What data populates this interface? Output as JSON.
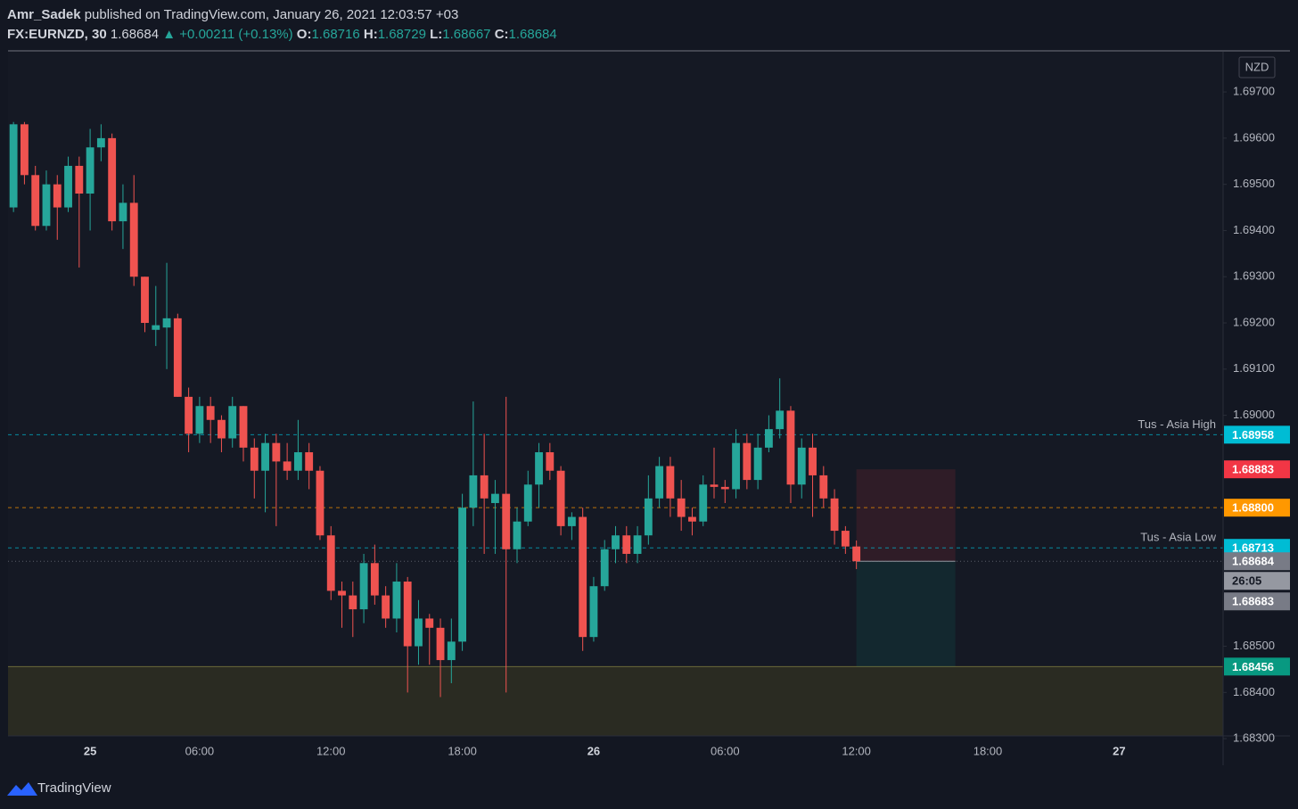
{
  "header": {
    "publisher": "Amr_Sadek",
    "published": "published on TradingView.com, January 26, 2021 12:03:57 +03",
    "symbol": "FX:EURNZD, 30",
    "last": "1.68684",
    "change": "+0.00211 (+0.13%)",
    "ohlc": [
      {
        "label": "O:",
        "value": "1.68716"
      },
      {
        "label": "H:",
        "value": "1.68729"
      },
      {
        "label": "L:",
        "value": "1.68667"
      },
      {
        "label": "C:",
        "value": "1.68684"
      }
    ]
  },
  "brand": "TradingView",
  "chart_data": {
    "type": "candlestick",
    "currency": "NZD",
    "up_color": "#26a69a",
    "down_color": "#ef5350",
    "categories": [
      null,
      null,
      null,
      null,
      null,
      null,
      null,
      "25",
      null,
      null,
      null,
      null,
      null,
      null,
      null,
      null,
      null,
      "06:00",
      null,
      null,
      null,
      null,
      null,
      null,
      null,
      null,
      null,
      null,
      null,
      "12:00",
      null,
      null,
      null,
      null,
      null,
      null,
      null,
      null,
      null,
      null,
      null,
      "18:00",
      null,
      null,
      null,
      null,
      null,
      null,
      null,
      null,
      null,
      null,
      null,
      "26",
      null,
      null,
      null,
      null,
      null,
      null,
      null,
      null,
      null,
      null,
      null,
      "06:00",
      null,
      null,
      null,
      null,
      null,
      null,
      null,
      null,
      null,
      null,
      null,
      "12:00",
      null,
      null,
      null,
      null,
      null,
      null,
      null,
      null,
      null,
      null,
      null,
      "18:00",
      null,
      null,
      null,
      null,
      null,
      null,
      null,
      null,
      null,
      null,
      null,
      "27",
      null,
      null,
      null,
      null,
      null,
      null,
      null,
      null,
      null
    ],
    "open": [
      1.6945,
      1.6963,
      1.6952,
      1.6941,
      1.695,
      1.6945,
      1.6954,
      1.6948,
      1.6958,
      1.696,
      1.6942,
      1.6946,
      1.693,
      1.69185,
      1.6919,
      1.6921,
      1.6904,
      1.6896,
      1.6902,
      1.6899,
      1.6895,
      1.6902,
      1.6893,
      1.6888,
      1.6894,
      1.689,
      1.6888,
      1.6892,
      1.6888,
      1.6874,
      1.6862,
      1.6861,
      1.6858,
      1.6868,
      1.6861,
      1.6856,
      1.6864,
      1.685,
      1.6856,
      1.6854,
      1.6847,
      1.6851,
      1.688,
      1.6887,
      1.6881,
      1.6883,
      1.6871,
      1.6877,
      1.6885,
      1.6892,
      1.6888,
      1.6876,
      1.6878,
      1.6852,
      1.6863,
      1.6871,
      1.6874,
      1.687,
      1.6874,
      1.6882,
      1.6889,
      1.6882,
      1.6878,
      1.6877,
      1.6885,
      1.68845,
      1.6884,
      1.6894,
      1.6886,
      1.6893,
      1.6897,
      1.6901,
      1.6885,
      1.6893,
      1.6887,
      1.6882,
      1.6875,
      1.68716,
      null,
      null,
      null,
      null,
      null,
      null,
      null,
      null,
      null,
      null,
      null,
      null,
      null,
      null,
      null,
      null,
      null,
      null,
      null,
      null,
      null,
      null,
      null,
      null,
      null,
      null,
      null,
      null,
      null,
      null,
      null,
      null,
      null
    ],
    "high": [
      1.69635,
      1.69635,
      1.6954,
      1.6953,
      1.6952,
      1.6956,
      1.6956,
      1.6962,
      1.6963,
      1.6961,
      1.695,
      1.6952,
      1.693,
      1.6928,
      1.6933,
      1.6922,
      1.6906,
      1.6904,
      1.6904,
      1.69,
      1.6904,
      1.6902,
      1.6895,
      1.6896,
      1.6896,
      1.6894,
      1.6899,
      1.6894,
      1.6889,
      1.6876,
      1.6864,
      1.6864,
      1.687,
      1.6872,
      1.6863,
      1.6868,
      1.6865,
      1.686,
      1.6857,
      1.6856,
      1.6856,
      1.6883,
      1.6903,
      1.6896,
      1.6886,
      1.6904,
      1.688,
      1.6888,
      1.6894,
      1.6894,
      1.6889,
      1.6879,
      1.688,
      1.6865,
      1.6873,
      1.6876,
      1.6876,
      1.6876,
      1.6887,
      1.6891,
      1.6891,
      1.6886,
      1.688,
      1.6887,
      1.6893,
      1.6886,
      1.6897,
      1.6896,
      1.6896,
      1.69,
      1.6908,
      1.6902,
      1.6895,
      1.6896,
      1.6889,
      1.6884,
      1.6876,
      1.68729,
      null,
      null,
      null,
      null,
      null,
      null,
      null,
      null,
      null,
      null,
      null,
      null,
      null,
      null,
      null,
      null,
      null,
      null,
      null,
      null,
      null,
      null,
      null,
      null,
      null,
      null,
      null,
      null,
      null,
      null,
      null,
      null,
      null
    ],
    "low": [
      1.6944,
      1.695,
      1.694,
      1.694,
      1.6938,
      1.6944,
      1.6932,
      1.694,
      1.6955,
      1.694,
      1.6936,
      1.6928,
      1.6918,
      1.6915,
      1.691,
      1.6904,
      1.6892,
      1.6894,
      1.6894,
      1.6892,
      1.6893,
      1.689,
      1.6882,
      1.6879,
      1.6876,
      1.6886,
      1.6886,
      1.6884,
      1.6873,
      1.686,
      1.6854,
      1.6852,
      1.6855,
      1.6859,
      1.6854,
      1.6853,
      1.684,
      1.6846,
      1.6846,
      1.6839,
      1.6842,
      1.6849,
      1.6876,
      1.687,
      1.687,
      1.684,
      1.6868,
      1.6876,
      1.688,
      1.6886,
      1.6874,
      1.6873,
      1.6849,
      1.6851,
      1.6862,
      1.6868,
      1.6868,
      1.6868,
      1.6872,
      1.688,
      1.6878,
      1.6875,
      1.6874,
      1.6876,
      1.6882,
      1.6881,
      1.6882,
      1.6884,
      1.6884,
      1.6892,
      1.6895,
      1.6881,
      1.6882,
      1.6878,
      1.688,
      1.6872,
      1.687,
      1.68667,
      null,
      null,
      null,
      null,
      null,
      null,
      null,
      null,
      null,
      null,
      null,
      null,
      null,
      null,
      null,
      null,
      null,
      null,
      null,
      null,
      null,
      null,
      null,
      null,
      null,
      null,
      null,
      null,
      null,
      null,
      null,
      null,
      null
    ],
    "close": [
      1.6963,
      1.6952,
      1.6941,
      1.695,
      1.6945,
      1.6954,
      1.6948,
      1.6958,
      1.696,
      1.6942,
      1.6946,
      1.693,
      1.692,
      1.69195,
      1.6921,
      1.6904,
      1.6896,
      1.6902,
      1.6899,
      1.6895,
      1.6902,
      1.6893,
      1.6888,
      1.6894,
      1.689,
      1.6888,
      1.6892,
      1.6888,
      1.6874,
      1.6862,
      1.6861,
      1.6858,
      1.6868,
      1.6861,
      1.6856,
      1.6864,
      1.685,
      1.6856,
      1.6854,
      1.6847,
      1.6851,
      1.688,
      1.6887,
      1.6882,
      1.6883,
      1.6871,
      1.6877,
      1.6885,
      1.6892,
      1.6888,
      1.6876,
      1.6878,
      1.6852,
      1.6863,
      1.6871,
      1.6874,
      1.687,
      1.6874,
      1.6882,
      1.6889,
      1.6882,
      1.6878,
      1.6877,
      1.6885,
      1.68845,
      1.6884,
      1.6894,
      1.6886,
      1.6893,
      1.6897,
      1.6901,
      1.6885,
      1.6893,
      1.6887,
      1.6882,
      1.6875,
      1.68716,
      1.68684,
      null,
      null,
      null,
      null,
      null,
      null,
      null,
      null,
      null,
      null,
      null,
      null,
      null,
      null,
      null,
      null,
      null,
      null,
      null,
      null,
      null,
      null,
      null,
      null,
      null,
      null,
      null,
      null,
      null,
      null,
      null,
      null,
      null
    ],
    "ylim": [
      1.68306,
      1.69789
    ],
    "yticks": [
      {
        "value": 1.697,
        "label": "1.69700"
      },
      {
        "value": 1.696,
        "label": "1.69600"
      },
      {
        "value": 1.695,
        "label": "1.69500"
      },
      {
        "value": 1.694,
        "label": "1.69400"
      },
      {
        "value": 1.693,
        "label": "1.69300"
      },
      {
        "value": 1.692,
        "label": "1.69200"
      },
      {
        "value": 1.691,
        "label": "1.69100"
      },
      {
        "value": 1.69,
        "label": "1.69000"
      },
      {
        "value": 1.685,
        "label": "1.68500"
      },
      {
        "value": 1.684,
        "label": "1.68400"
      },
      {
        "value": 1.683,
        "label": "1.68300"
      }
    ],
    "price_lines": [
      {
        "price": 1.68958,
        "name": "Tus - Asia High",
        "color": "#00bcd4",
        "style": "dashed"
      },
      {
        "price": 1.68883,
        "color": "#f23645",
        "style": "none"
      },
      {
        "price": {
          "value": 1.688,
          "label": "1.68800"
        },
        "color": "#ff9800",
        "style": "dashed"
      },
      {
        "price": 1.68713,
        "name": "Tus - Asia Low",
        "color": "#00bcd4",
        "style": "dashed"
      },
      {
        "price": 1.68684,
        "color": "#787b86",
        "style": "dotted"
      },
      {
        "price": 1.68456,
        "color": "#089981",
        "style": "zone"
      }
    ],
    "countdown": "26:05",
    "bid": 1.68683
  }
}
